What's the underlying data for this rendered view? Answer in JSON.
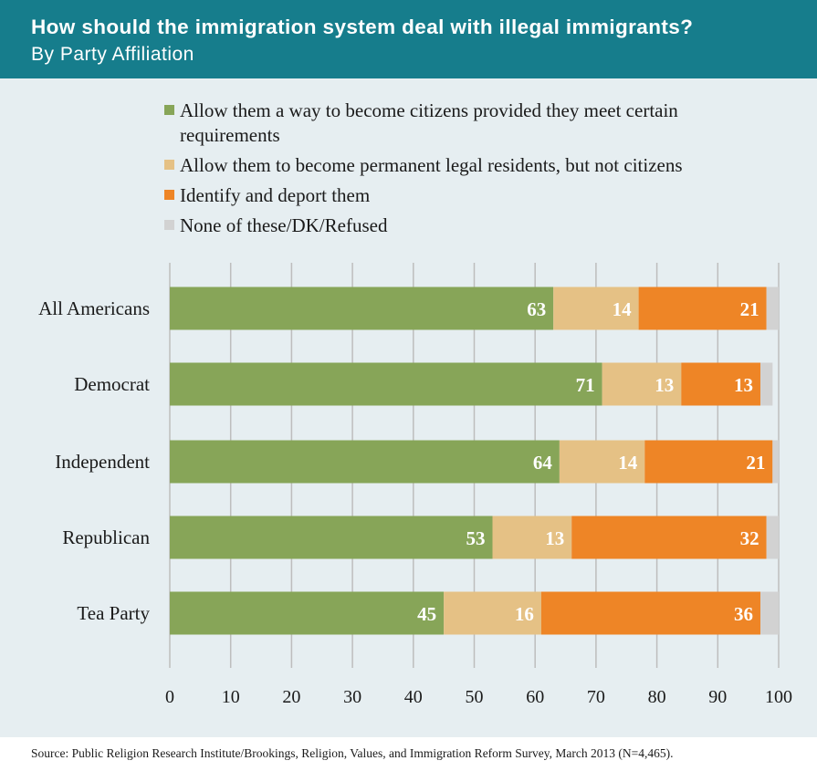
{
  "header": {
    "title": "How should the immigration system deal with illegal immigrants?",
    "subtitle": "By Party Affiliation"
  },
  "source": "Source: Public Religion Research Institute/Brookings, Religion, Values, and Immigration Reform Survey, March 2013 (N=4,465).",
  "chart_data": {
    "type": "bar",
    "orientation": "horizontal",
    "stacked": true,
    "title": "How should the immigration system deal with illegal immigrants?",
    "subtitle": "By Party Affiliation",
    "categories": [
      "All Americans",
      "Democrat",
      "Independent",
      "Republican",
      "Tea Party"
    ],
    "series": [
      {
        "name": "Allow them a way to become citizens provided they meet certain requirements",
        "color": "#87a558",
        "values": [
          63,
          71,
          64,
          53,
          45
        ],
        "labeled": true
      },
      {
        "name": "Allow them to become permanent legal residents, but not citizens",
        "color": "#e5c185",
        "values": [
          14,
          13,
          14,
          13,
          16
        ],
        "labeled": true
      },
      {
        "name": "Identify and deport them",
        "color": "#ee8526",
        "values": [
          21,
          13,
          21,
          32,
          36
        ],
        "labeled": true
      },
      {
        "name": "None of these/DK/Refused",
        "color": "#d2d2d2",
        "values": [
          2,
          2,
          1,
          2,
          3
        ],
        "labeled": false
      }
    ],
    "xlim": [
      0,
      100
    ],
    "xticks": [
      0,
      10,
      20,
      30,
      40,
      50,
      60,
      70,
      80,
      90,
      100
    ],
    "grid": true,
    "legend_position": "top"
  }
}
